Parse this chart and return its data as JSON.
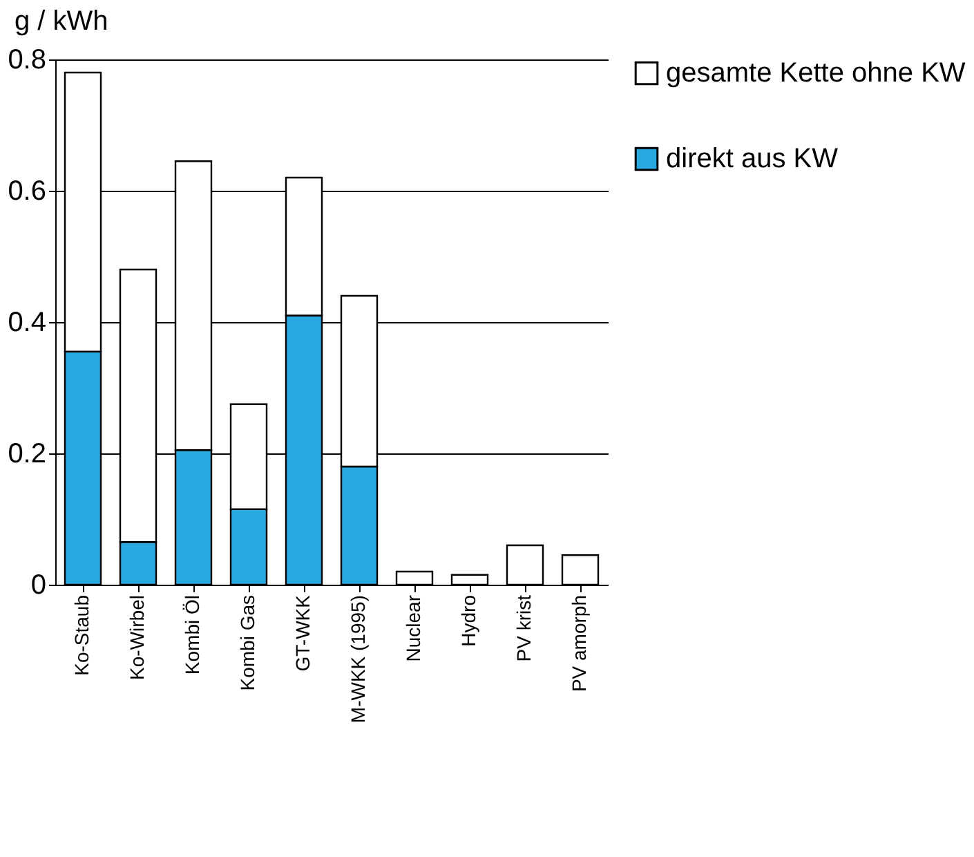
{
  "chart_data": {
    "type": "bar",
    "stacked": true,
    "ylabel": "g / kWh",
    "categories": [
      "Ko-Staub",
      "Ko-Wirbel",
      "Kombi Öl",
      "Kombi Gas",
      "GT-WKK",
      "M-WKK (1995)",
      "Nuclear",
      "Hydro",
      "PV krist",
      "PV amorph"
    ],
    "series": [
      {
        "name": "direkt aus KW",
        "color": "#29a9e0",
        "values": [
          0.355,
          0.065,
          0.205,
          0.115,
          0.41,
          0.18,
          0,
          0,
          0,
          0
        ]
      },
      {
        "name": "gesamte Kette ohne KW",
        "color": "#ffffff",
        "values": [
          0.425,
          0.415,
          0.44,
          0.16,
          0.21,
          0.26,
          0.02,
          0.015,
          0.06,
          0.045
        ]
      }
    ],
    "ylim": [
      0,
      0.8
    ],
    "yticks": [
      0,
      0.2,
      0.4,
      0.6,
      0.8
    ],
    "grid": "y",
    "legend": "top right"
  }
}
